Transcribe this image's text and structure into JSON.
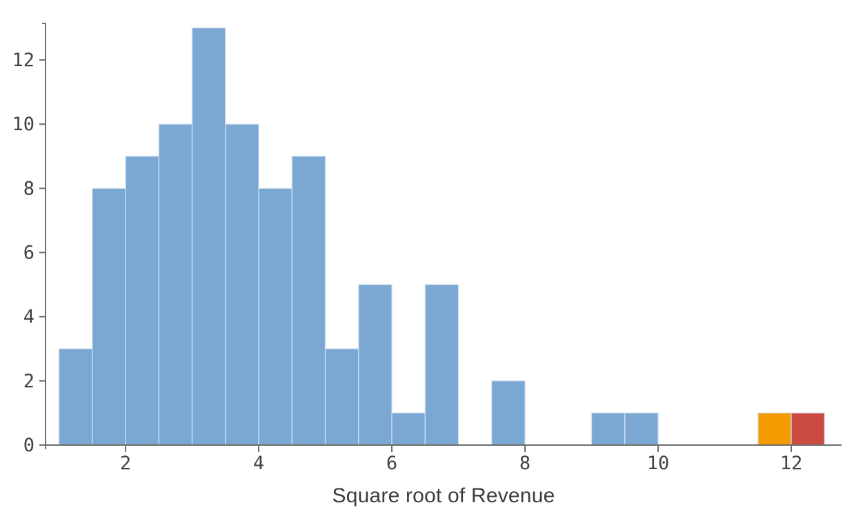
{
  "chart_data": {
    "type": "bar",
    "subtype": "histogram",
    "title": "",
    "xlabel": "Square root of Revenue",
    "ylabel": "",
    "x_ticks": [
      2,
      4,
      6,
      8,
      10,
      12
    ],
    "y_ticks": [
      0,
      2,
      4,
      6,
      8,
      10,
      12
    ],
    "xlim": [
      0.8,
      12.76
    ],
    "ylim": [
      0,
      13.16
    ],
    "bin_width": 0.5,
    "grid": false,
    "legend": false,
    "bins": [
      {
        "x0": 1.0,
        "x1": 1.5,
        "count": 3,
        "color": "blue"
      },
      {
        "x0": 1.5,
        "x1": 2.0,
        "count": 8,
        "color": "blue"
      },
      {
        "x0": 2.0,
        "x1": 2.5,
        "count": 9,
        "color": "blue"
      },
      {
        "x0": 2.5,
        "x1": 3.0,
        "count": 10,
        "color": "blue"
      },
      {
        "x0": 3.0,
        "x1": 3.5,
        "count": 13,
        "color": "blue"
      },
      {
        "x0": 3.5,
        "x1": 4.0,
        "count": 10,
        "color": "blue"
      },
      {
        "x0": 4.0,
        "x1": 4.5,
        "count": 8,
        "color": "blue"
      },
      {
        "x0": 4.5,
        "x1": 5.0,
        "count": 9,
        "color": "blue"
      },
      {
        "x0": 5.0,
        "x1": 5.5,
        "count": 3,
        "color": "blue"
      },
      {
        "x0": 5.5,
        "x1": 6.0,
        "count": 5,
        "color": "blue"
      },
      {
        "x0": 6.0,
        "x1": 6.5,
        "count": 1,
        "color": "blue"
      },
      {
        "x0": 6.5,
        "x1": 7.0,
        "count": 5,
        "color": "blue"
      },
      {
        "x0": 7.5,
        "x1": 8.0,
        "count": 2,
        "color": "blue"
      },
      {
        "x0": 9.0,
        "x1": 9.5,
        "count": 1,
        "color": "blue"
      },
      {
        "x0": 9.5,
        "x1": 10.0,
        "count": 1,
        "color": "blue"
      },
      {
        "x0": 11.5,
        "x1": 12.0,
        "count": 1,
        "color": "orange"
      },
      {
        "x0": 12.0,
        "x1": 12.5,
        "count": 1,
        "color": "red"
      }
    ],
    "colors": {
      "blue": "#7BA7D3",
      "orange": "#F59B00",
      "red": "#CC4B41",
      "bar_stroke": "#CFE0EF",
      "axis": "#6E6E6E",
      "tick_label": "#424242",
      "axis_title": "#3C3C3C",
      "background": "#FFFFFF"
    }
  }
}
